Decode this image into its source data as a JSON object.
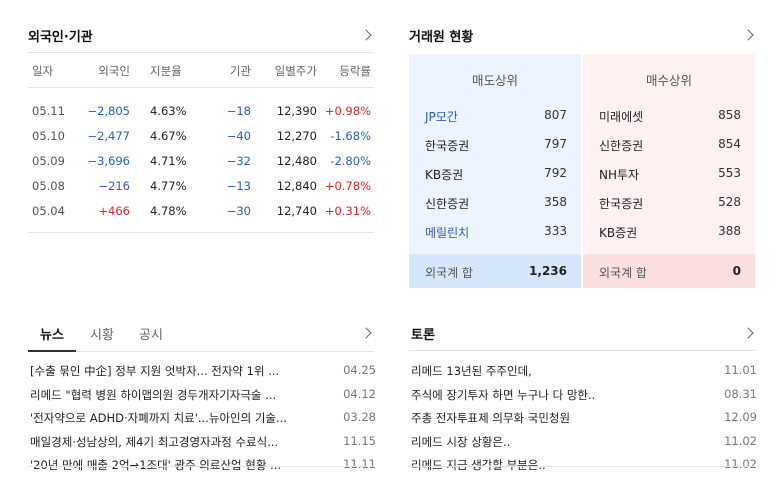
{
  "foreign": {
    "title": "외국인·기관",
    "headers": [
      "일자",
      "외국인",
      "지분율",
      "기관",
      "일별주가",
      "등락률"
    ],
    "rows": [
      {
        "date": "05.11",
        "foreign": "−2,805",
        "share": "4.63%",
        "inst": "−18",
        "price": "12,390",
        "rate": "+0.98%"
      },
      {
        "date": "05.10",
        "foreign": "−2,477",
        "share": "4.67%",
        "inst": "−40",
        "price": "12,270",
        "rate": "-1.68%"
      },
      {
        "date": "05.09",
        "foreign": "−3,696",
        "share": "4.71%",
        "inst": "−32",
        "price": "12,480",
        "rate": "-2.80%"
      },
      {
        "date": "05.08",
        "foreign": "−216",
        "share": "4.77%",
        "inst": "−13",
        "price": "12,840",
        "rate": "+0.78%"
      },
      {
        "date": "05.04",
        "foreign": "+466",
        "share": "4.78%",
        "inst": "−30",
        "price": "12,740",
        "rate": "+0.31%"
      }
    ]
  },
  "broker": {
    "title": "거래원 현황",
    "sell": {
      "header": "매도상위",
      "items": [
        {
          "name": "JP모간",
          "value": "807"
        },
        {
          "name": "한국증권",
          "value": "797"
        },
        {
          "name": "KB증권",
          "value": "792"
        },
        {
          "name": "신한증권",
          "value": "358"
        },
        {
          "name": "메릴린치",
          "value": "333"
        }
      ],
      "sum_label": "외국계 합",
      "sum_value": "1,236"
    },
    "buy": {
      "header": "매수상위",
      "items": [
        {
          "name": "미래에셋",
          "value": "858"
        },
        {
          "name": "신한증권",
          "value": "854"
        },
        {
          "name": "NH투자",
          "value": "553"
        },
        {
          "name": "한국증권",
          "value": "528"
        },
        {
          "name": "KB증권",
          "value": "388"
        }
      ],
      "sum_label": "외국계 합",
      "sum_value": "0"
    }
  },
  "news": {
    "tabs": [
      "뉴스",
      "시황",
      "공시"
    ],
    "items": [
      {
        "title": "[수출 묶인 中企] 정부 지원 엇박자... 전자약 1위 ...",
        "date": "04.25"
      },
      {
        "title": "리메드 \"협력 병원 하이맵의원 경두개자기자극술 ...",
        "date": "04.12"
      },
      {
        "title": "'전자약으로 ADHD·자폐까지 치료'...뉴아인의 기술...",
        "date": "03.28"
      },
      {
        "title": "매일경제·성남상의, 제4기 최고경영자과정 수료식...",
        "date": "11.15"
      },
      {
        "title": "'20년 만에 매출 2억→1조대' 광주 의료산업 현황 ...",
        "date": "11.11"
      }
    ]
  },
  "forum": {
    "title": "토론",
    "items": [
      {
        "title": "리메드 13년된 주주인데,",
        "date": "11.01"
      },
      {
        "title": "주식에 장기투자 하면 누구나 다 망한..",
        "date": "08.31"
      },
      {
        "title": "주총 전자투표제 의무화 국민청원",
        "date": "12.09"
      },
      {
        "title": "리메드 시장 상황은..",
        "date": "11.02"
      },
      {
        "title": "리메드 지금 생각할 부분은..",
        "date": "11.02"
      }
    ]
  },
  "colors": {
    "negative": "#2a5fb7",
    "positive": "#e02525",
    "sell_bg": "#eef4fd",
    "buy_bg": "#fdf1f1"
  }
}
